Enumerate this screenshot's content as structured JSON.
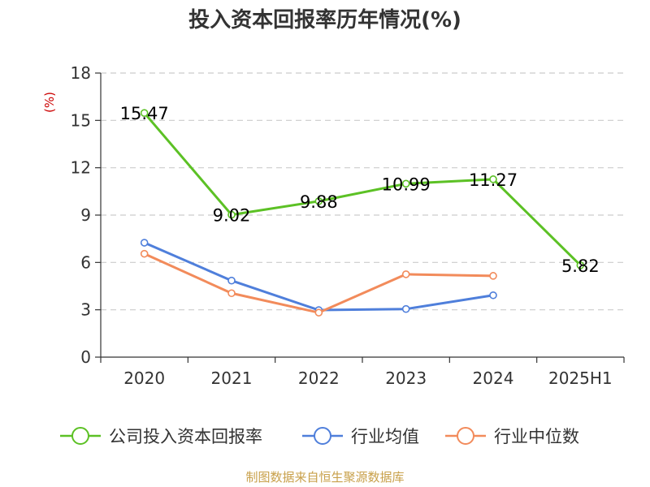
{
  "chart_data": {
    "type": "line",
    "title": "投入资本回报率历年情况(%)",
    "ylabel": "(%)",
    "categories": [
      "2020",
      "2021",
      "2022",
      "2023",
      "2024",
      "2025H1"
    ],
    "yticks": [
      "0",
      "3",
      "6",
      "9",
      "12",
      "15",
      "18"
    ],
    "ylim": [
      0,
      18
    ],
    "grid": "horizontal dashed",
    "legend_position": "bottom",
    "series": [
      {
        "name": "公司投入资本回报率",
        "color": "#5cc125",
        "values": [
          15.47,
          9.02,
          9.88,
          10.99,
          11.27,
          5.82
        ],
        "labels": [
          "15.47",
          "9.02",
          "9.88",
          "10.99",
          "11.27",
          "5.82"
        ]
      },
      {
        "name": "行业均值",
        "color": "#4f7fdb",
        "values": [
          7.25,
          4.85,
          2.98,
          3.05,
          3.92,
          null
        ]
      },
      {
        "name": "行业中位数",
        "color": "#f28b5b",
        "values": [
          6.55,
          4.05,
          2.82,
          5.25,
          5.15,
          null
        ]
      }
    ]
  },
  "source": "制图数据来自恒生聚源数据库",
  "colors": {
    "axis": "#333333",
    "grid": "#cccccc",
    "unit": "#cc0000",
    "source": "#c8a04a"
  }
}
